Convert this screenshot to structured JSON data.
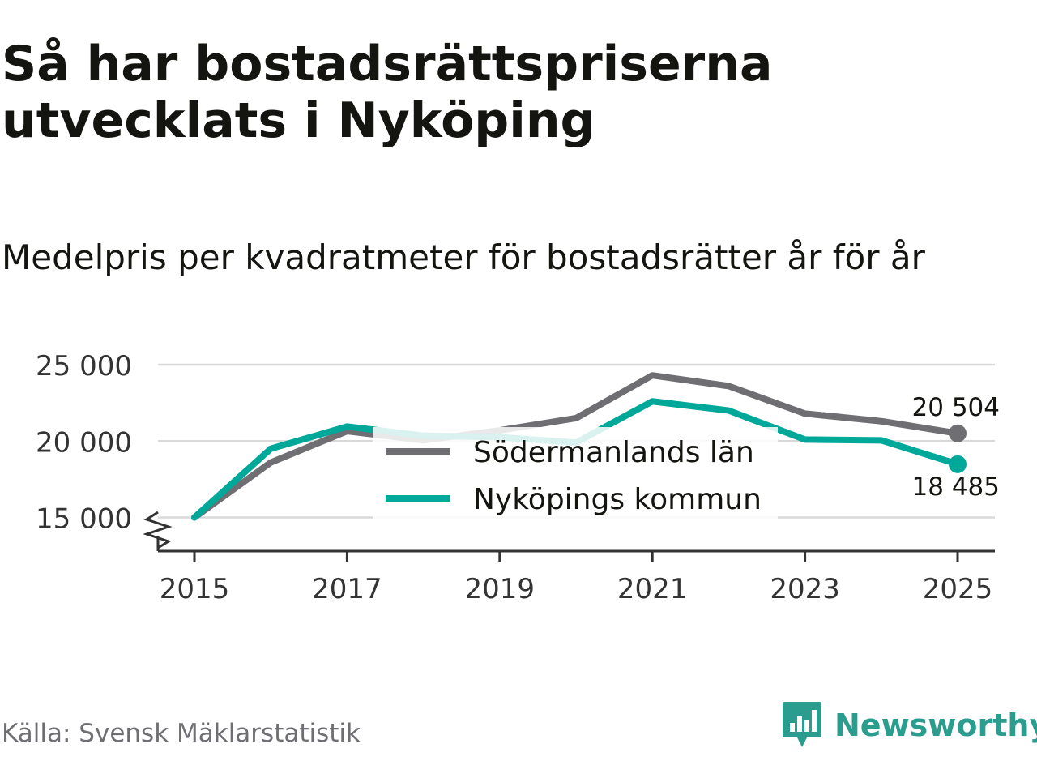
{
  "header": {
    "title": "Så har bostadsrättspriserna utvecklats i Nyköping",
    "subtitle": "Medelpris per kvadratmeter för bostadsrätter år för år"
  },
  "footer": {
    "source": "Källa: Svensk Mäklarstatistik",
    "brand": "Newsworthy"
  },
  "chart_data": {
    "type": "line",
    "title": "Så har bostadsrättspriserna utvecklats i Nyköping",
    "subtitle": "Medelpris per kvadratmeter för bostadsrätter år för år",
    "xlabel": "",
    "ylabel": "",
    "x": [
      2015,
      2016,
      2017,
      2018,
      2019,
      2020,
      2021,
      2022,
      2023,
      2024,
      2025
    ],
    "xticks": [
      2015,
      2017,
      2019,
      2021,
      2023,
      2025
    ],
    "xtick_labels": [
      "2015",
      "2017",
      "2019",
      "2021",
      "2023",
      "2025"
    ],
    "yticks": [
      15000,
      20000,
      25000
    ],
    "ytick_labels": [
      "15 000",
      "20 000",
      "25 000"
    ],
    "ylim": [
      12800,
      25000
    ],
    "xlim": [
      2014.5,
      2025.5
    ],
    "grid": true,
    "axis_break": true,
    "legend_position": "center",
    "series": [
      {
        "name": "Södermanlands län",
        "color": "#6f6e72",
        "values": [
          15000,
          18600,
          20650,
          20050,
          20700,
          21500,
          24300,
          23600,
          21800,
          21300,
          20504
        ],
        "end_label": "20 504"
      },
      {
        "name": "Nyköpings kommun",
        "color": "#00a89a",
        "values": [
          15000,
          19500,
          20950,
          20350,
          20250,
          19900,
          22600,
          22000,
          20100,
          20050,
          18485
        ],
        "end_label": "18 485"
      }
    ]
  }
}
